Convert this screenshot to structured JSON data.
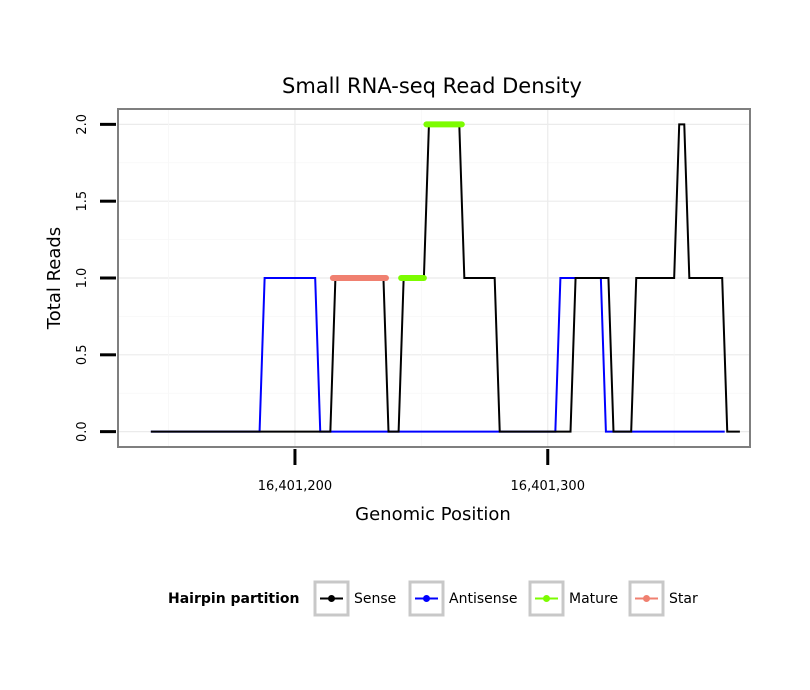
{
  "chart_data": {
    "type": "line",
    "title": "Small RNA-seq Read Density",
    "xlabel": "Genomic Position",
    "ylabel": "Total Reads",
    "xlim": [
      16401130,
      16401380
    ],
    "ylim": [
      -0.1,
      2.1
    ],
    "xticks": [
      {
        "value": 16401200,
        "label": "16,401,200"
      },
      {
        "value": 16401300,
        "label": "16,401,300"
      }
    ],
    "yticks": [
      {
        "value": 0.0,
        "label": "0.0"
      },
      {
        "value": 0.5,
        "label": "0.5"
      },
      {
        "value": 1.0,
        "label": "1.0"
      },
      {
        "value": 1.5,
        "label": "1.5"
      },
      {
        "value": 2.0,
        "label": "2.0"
      }
    ],
    "grid": true,
    "legend": {
      "title": "Hairpin partition",
      "position": "bottom"
    },
    "series": [
      {
        "name": "Sense",
        "color": "#000000",
        "kind": "line",
        "x": [
          16401143,
          16401214,
          16401216,
          16401235,
          16401237,
          16401241,
          16401243,
          16401251,
          16401253,
          16401265,
          16401267,
          16401279,
          16401281,
          16401309,
          16401311,
          16401324,
          16401326,
          16401333,
          16401335,
          16401350,
          16401352,
          16401354,
          16401356,
          16401369,
          16401371,
          16401376
        ],
        "y": [
          0,
          0,
          1,
          1,
          0,
          0,
          1,
          1,
          2,
          2,
          1,
          1,
          0,
          0,
          1,
          1,
          0,
          0,
          1,
          1,
          2,
          2,
          1,
          1,
          0,
          0
        ]
      },
      {
        "name": "Antisense",
        "color": "#0000ff",
        "kind": "line",
        "x": [
          16401143,
          16401186,
          16401188,
          16401208,
          16401210,
          16401303,
          16401305,
          16401321,
          16401323,
          16401370
        ],
        "y": [
          0,
          0,
          1,
          1,
          0,
          0,
          1,
          1,
          0,
          0
        ]
      },
      {
        "name": "Mature",
        "color": "#7cfc00",
        "kind": "segment",
        "segments": [
          {
            "x": [
              16401242,
              16401251
            ],
            "y": 1
          },
          {
            "x": [
              16401252,
              16401266
            ],
            "y": 2
          }
        ]
      },
      {
        "name": "Star",
        "color": "#f08070",
        "kind": "segment",
        "segments": [
          {
            "x": [
              16401215,
              16401236
            ],
            "y": 1
          }
        ]
      }
    ]
  }
}
